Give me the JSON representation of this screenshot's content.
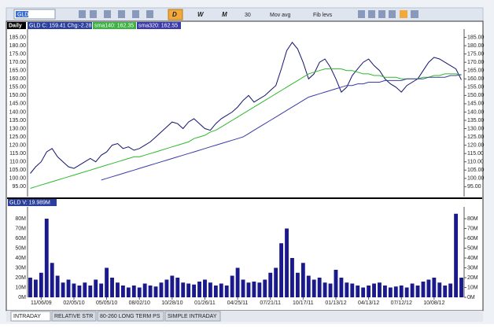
{
  "toolbar": {
    "symbol": "GLD",
    "buttons": [
      "D",
      "W",
      "M",
      "30",
      "Mov avg",
      "Fib levs"
    ]
  },
  "period": "Daily",
  "tabs": [
    "INTRADAY",
    "RELATIVE STR",
    "80-260 LONG TERM PS",
    "SIMPLE INTRADAY"
  ],
  "chart_data": [
    {
      "type": "line",
      "ylim": [
        89,
        190
      ],
      "yticks": [
        {
          "value": 95,
          "label": "95.00"
        },
        {
          "value": 100,
          "label": "100.00"
        },
        {
          "value": 105,
          "label": "105.00"
        },
        {
          "value": 110,
          "label": "110.00"
        },
        {
          "value": 115,
          "label": "115.00"
        },
        {
          "value": 120,
          "label": "120.00"
        },
        {
          "value": 125,
          "label": "125.00"
        },
        {
          "value": 130,
          "label": "130.00"
        },
        {
          "value": 135,
          "label": "135.00"
        },
        {
          "value": 140,
          "label": "140.00"
        },
        {
          "value": 145,
          "label": "145.00"
        },
        {
          "value": 150,
          "label": "150.00"
        },
        {
          "value": 155,
          "label": "155.00"
        },
        {
          "value": 160,
          "label": "160.00"
        },
        {
          "value": 165,
          "label": "165.00"
        },
        {
          "value": 170,
          "label": "170.00"
        },
        {
          "value": 175,
          "label": "175.00"
        },
        {
          "value": 180,
          "label": "180.00"
        },
        {
          "value": 185,
          "label": "185.00"
        }
      ],
      "grid": false,
      "series": [
        {
          "name": "GLD C: 159.41 Chg:-2.28",
          "color": "#14146e",
          "values": [
            103,
            107,
            110,
            116,
            118,
            113,
            110,
            107,
            106,
            108,
            110,
            112,
            110,
            114,
            116,
            120,
            121,
            118,
            119,
            117,
            118,
            120,
            122,
            125,
            128,
            131,
            134,
            133,
            130,
            134,
            136,
            133,
            130,
            129,
            133,
            136,
            138,
            140,
            143,
            147,
            150,
            146,
            148,
            150,
            153,
            156,
            166,
            177,
            182,
            178,
            170,
            160,
            163,
            170,
            172,
            167,
            160,
            152,
            155,
            162,
            166,
            170,
            172,
            168,
            165,
            160,
            157,
            155,
            152,
            156,
            158,
            160,
            165,
            170,
            173,
            172,
            170,
            168,
            166,
            159.41
          ]
        },
        {
          "name": "sma140: 162.35",
          "color": "#2db82d",
          "values": [
            94,
            95,
            96,
            97,
            98,
            99,
            100,
            101,
            102,
            103,
            104,
            105,
            106,
            107,
            108,
            109,
            110,
            111,
            112,
            113,
            113,
            114,
            115,
            116,
            117,
            118,
            119,
            120,
            121,
            122,
            124,
            125,
            126,
            128,
            129,
            131,
            133,
            135,
            137,
            139,
            141,
            143,
            145,
            147,
            149,
            151,
            153,
            155,
            157,
            159,
            161,
            163,
            164,
            165,
            166,
            166,
            166,
            166,
            165,
            165,
            164,
            163,
            163,
            162,
            162,
            161,
            161,
            161,
            160,
            160,
            160,
            160,
            161,
            161,
            162,
            162,
            163,
            163,
            163,
            162.35
          ]
        },
        {
          "name": "sma320: 162.55",
          "color": "#3a3aa8",
          "values": [
            null,
            null,
            null,
            null,
            null,
            null,
            null,
            null,
            null,
            null,
            null,
            null,
            null,
            99,
            100,
            101,
            102,
            103,
            104,
            105,
            106,
            107,
            108,
            109,
            110,
            111,
            112,
            113,
            114,
            115,
            116,
            117,
            118,
            119,
            120,
            121,
            122,
            123,
            124,
            125,
            127,
            129,
            131,
            133,
            135,
            137,
            139,
            141,
            143,
            145,
            147,
            149,
            150,
            151,
            152,
            153,
            154,
            155,
            156,
            156,
            157,
            157,
            158,
            158,
            158,
            159,
            159,
            159,
            159,
            160,
            160,
            160,
            160,
            161,
            161,
            161,
            161,
            162,
            162,
            162.55
          ]
        }
      ]
    },
    {
      "type": "bar",
      "ylim": [
        0,
        92
      ],
      "yticks": [
        {
          "value": 0,
          "label": "0M"
        },
        {
          "value": 10,
          "label": "10M"
        },
        {
          "value": 20,
          "label": "20M"
        },
        {
          "value": 30,
          "label": "30M"
        },
        {
          "value": 40,
          "label": "40M"
        },
        {
          "value": 50,
          "label": "50M"
        },
        {
          "value": 60,
          "label": "60M"
        },
        {
          "value": 70,
          "label": "70M"
        },
        {
          "value": 80,
          "label": "80M"
        }
      ],
      "grid": false,
      "categories": [
        null,
        null,
        "11/06/09",
        null,
        null,
        null,
        null,
        null,
        "02/05/10",
        null,
        null,
        null,
        null,
        null,
        "05/05/10",
        null,
        null,
        null,
        null,
        null,
        "08/02/10",
        null,
        null,
        null,
        null,
        null,
        "10/28/10",
        null,
        null,
        null,
        null,
        null,
        "01/26/11",
        null,
        null,
        null,
        null,
        null,
        "04/25/11",
        null,
        null,
        null,
        null,
        null,
        "07/21/11",
        null,
        null,
        null,
        null,
        null,
        "10/17/11",
        null,
        null,
        null,
        null,
        null,
        "01/13/12",
        null,
        null,
        null,
        null,
        null,
        "04/13/12",
        null,
        null,
        null,
        null,
        null,
        "07/12/12",
        null,
        null,
        null,
        null,
        null,
        "10/08/12",
        null,
        null,
        null,
        null,
        null
      ],
      "series": [
        {
          "name": "GLD V: 19.989M",
          "color": "#1a1a8c",
          "values": [
            20,
            18,
            25,
            80,
            35,
            22,
            15,
            18,
            14,
            12,
            15,
            12,
            18,
            14,
            30,
            20,
            15,
            12,
            10,
            12,
            10,
            14,
            12,
            11,
            15,
            18,
            22,
            20,
            15,
            14,
            13,
            16,
            18,
            15,
            12,
            14,
            12,
            22,
            30,
            18,
            15,
            16,
            15,
            18,
            25,
            30,
            55,
            70,
            40,
            25,
            35,
            22,
            18,
            20,
            15,
            14,
            28,
            20,
            15,
            14,
            12,
            10,
            12,
            14,
            15,
            12,
            10,
            11,
            12,
            10,
            14,
            12,
            16,
            18,
            20,
            15,
            12,
            14,
            85,
            19.989
          ]
        }
      ]
    }
  ]
}
